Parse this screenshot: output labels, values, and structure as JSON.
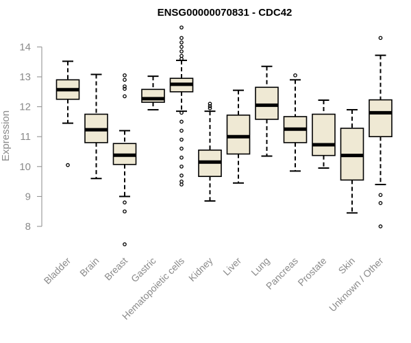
{
  "chart_data": {
    "type": "boxplot",
    "title": "ENSG00000070831 - CDC42",
    "ylabel": "Expression",
    "xlabel": "",
    "ylim": [
      7.5,
      14.6
    ],
    "yticks": [
      8,
      9,
      10,
      11,
      12,
      13,
      14
    ],
    "box_fill": "#efe9d4",
    "line_color": "#000000",
    "axis_color": "#8a8a8a",
    "categories": [
      "Bladder",
      "Brain",
      "Breast",
      "Gastric",
      "Hematopoietic cells",
      "Kidney",
      "Liver",
      "Lung",
      "Pancreas",
      "Prostate",
      "Skin",
      "Unknown / Other"
    ],
    "boxes": [
      {
        "name": "Bladder",
        "whisker_low": 11.45,
        "q1": 12.25,
        "median": 12.57,
        "q3": 12.9,
        "whisker_high": 13.52,
        "outliers": [
          10.05
        ]
      },
      {
        "name": "Brain",
        "whisker_low": 9.6,
        "q1": 10.8,
        "median": 11.23,
        "q3": 11.75,
        "whisker_high": 13.08,
        "outliers": []
      },
      {
        "name": "Breast",
        "whisker_low": 9.0,
        "q1": 10.07,
        "median": 10.38,
        "q3": 10.77,
        "whisker_high": 11.2,
        "outliers": [
          13.05,
          12.9,
          12.68,
          12.6,
          12.35,
          8.8,
          8.5,
          7.4
        ]
      },
      {
        "name": "Gastric",
        "whisker_low": 11.9,
        "q1": 12.15,
        "median": 12.27,
        "q3": 12.58,
        "whisker_high": 13.02,
        "outliers": []
      },
      {
        "name": "Hematopoietic cells",
        "whisker_low": 11.85,
        "q1": 12.5,
        "median": 12.75,
        "q3": 12.95,
        "whisker_high": 13.55,
        "outliers": [
          14.65,
          14.3,
          14.15,
          14.0,
          13.85,
          13.7,
          13.6,
          11.8,
          11.5,
          11.2,
          10.9,
          10.6,
          10.3,
          10.0,
          9.7,
          9.5,
          9.4
        ]
      },
      {
        "name": "Kidney",
        "whisker_low": 8.85,
        "q1": 9.67,
        "median": 10.15,
        "q3": 10.55,
        "whisker_high": 11.85,
        "outliers": [
          12.1,
          12.02,
          11.95
        ]
      },
      {
        "name": "Liver",
        "whisker_low": 9.45,
        "q1": 10.42,
        "median": 11.0,
        "q3": 11.72,
        "whisker_high": 12.55,
        "outliers": []
      },
      {
        "name": "Lung",
        "whisker_low": 10.35,
        "q1": 11.58,
        "median": 12.05,
        "q3": 12.65,
        "whisker_high": 13.35,
        "outliers": []
      },
      {
        "name": "Pancreas",
        "whisker_low": 9.85,
        "q1": 10.8,
        "median": 11.25,
        "q3": 11.67,
        "whisker_high": 12.9,
        "outliers": [
          13.05
        ]
      },
      {
        "name": "Prostate",
        "whisker_low": 9.95,
        "q1": 10.37,
        "median": 10.73,
        "q3": 11.75,
        "whisker_high": 12.22,
        "outliers": []
      },
      {
        "name": "Skin",
        "whisker_low": 8.45,
        "q1": 9.55,
        "median": 10.37,
        "q3": 11.28,
        "whisker_high": 11.9,
        "outliers": []
      },
      {
        "name": "Unknown / Other",
        "whisker_low": 9.4,
        "q1": 11.0,
        "median": 11.8,
        "q3": 12.23,
        "whisker_high": 13.72,
        "outliers": [
          14.3,
          9.05,
          8.78,
          8.0
        ]
      }
    ]
  }
}
